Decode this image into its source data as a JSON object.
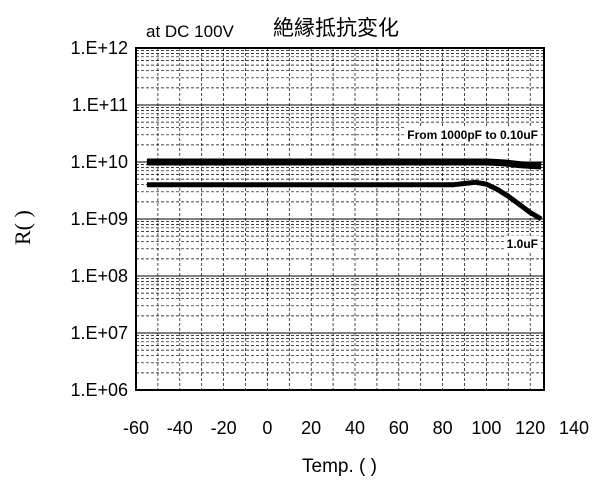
{
  "chart_data": {
    "type": "line",
    "title": "絶縁抵抗変化",
    "subtitle": "at DC 100V",
    "xlabel": "Temp. (   )",
    "ylabel": "R(   )",
    "x_scale": "linear",
    "y_scale": "log",
    "xlim": [
      -60,
      140
    ],
    "ylim": [
      1000000,
      1000000000000
    ],
    "x_ticks": [
      -60,
      -40,
      -20,
      0,
      20,
      40,
      60,
      80,
      100,
      120,
      140
    ],
    "x_tick_labels": [
      "-60",
      "-40",
      "-20",
      "0",
      "20",
      "40",
      "60",
      "80",
      "100",
      "120",
      "140"
    ],
    "y_ticks": [
      1000000,
      10000000,
      100000000,
      1000000000,
      10000000000,
      100000000000,
      1000000000000
    ],
    "y_tick_labels": [
      "1.E+06",
      "1.E+07",
      "1.E+08",
      "1.E+09",
      "1.E+10",
      "1.E+11",
      "1.E+12"
    ],
    "grid": true,
    "series": [
      {
        "name": "From 1000pF to 0.10uF",
        "color": "#000000",
        "x": [
          -55,
          0,
          50,
          90,
          100,
          105,
          110,
          115,
          120,
          125
        ],
        "y": [
          10000000000,
          10000000000,
          10000000000,
          10000000000,
          10000000000,
          9800000000,
          9500000000,
          9000000000,
          8700000000,
          8500000000
        ]
      },
      {
        "name": "1.0uF",
        "color": "#000000",
        "x": [
          -55,
          0,
          50,
          85,
          90,
          95,
          100,
          105,
          110,
          115,
          120,
          125
        ],
        "y": [
          4000000000,
          4000000000,
          4000000000,
          4000000000,
          4200000000,
          4400000000,
          4100000000,
          3300000000,
          2500000000,
          1800000000,
          1300000000,
          1000000000
        ]
      }
    ]
  }
}
